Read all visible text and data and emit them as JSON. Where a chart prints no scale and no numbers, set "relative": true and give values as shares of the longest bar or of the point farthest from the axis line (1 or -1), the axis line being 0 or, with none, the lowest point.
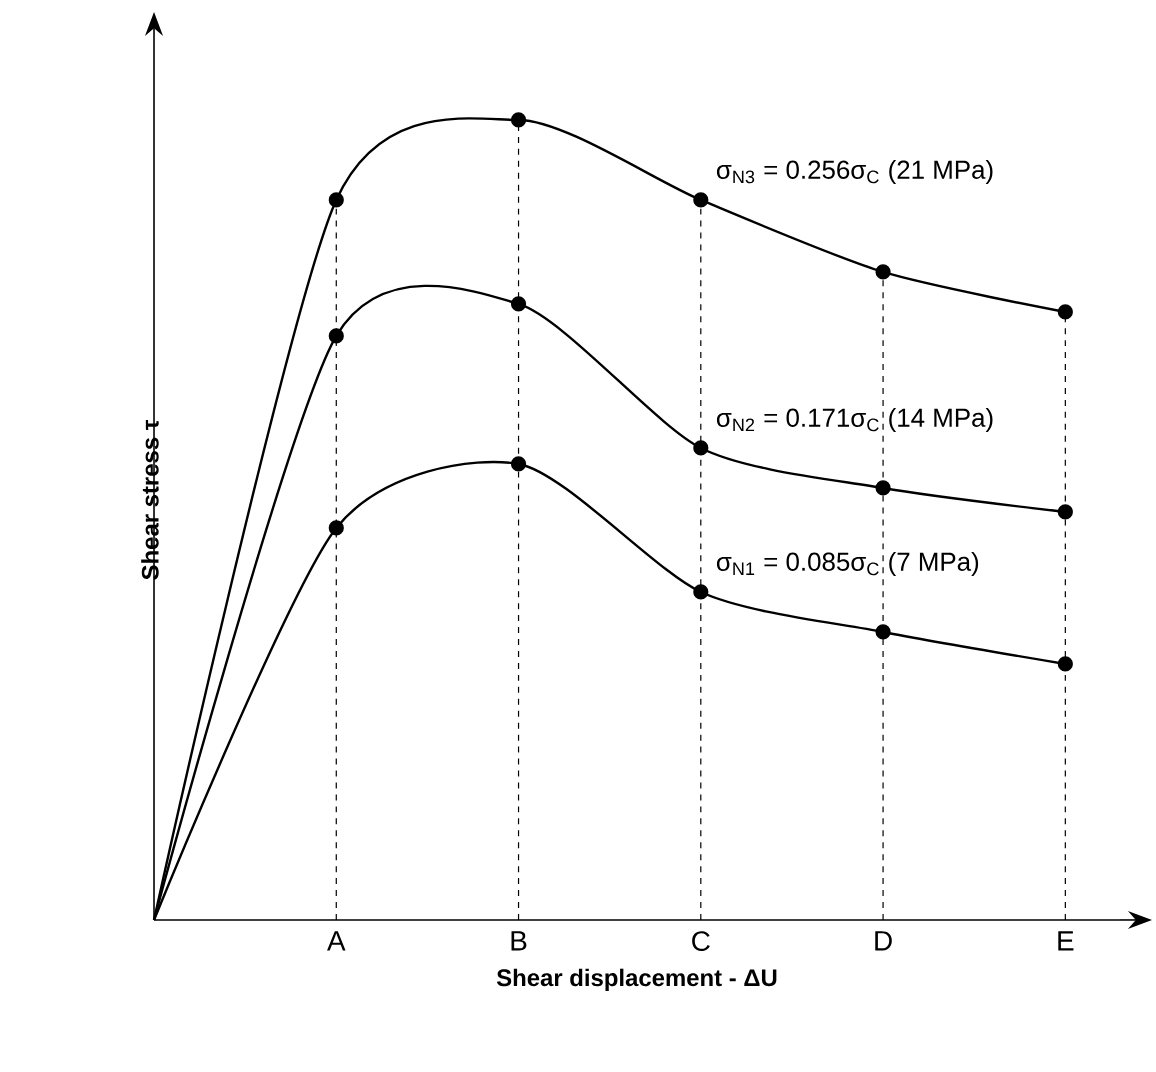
{
  "chart_data": {
    "type": "line",
    "relative": true,
    "xlabel": "Shear displacement - ΔU",
    "ylabel": "Shear stress τ",
    "categories": [
      null,
      "A",
      "B",
      "C",
      "D",
      "E"
    ],
    "ref_lines": [
      {
        "axis": "x",
        "value": "A",
        "line_style": "dashed"
      },
      {
        "axis": "x",
        "value": "B",
        "line_style": "dashed"
      },
      {
        "axis": "x",
        "value": "C",
        "line_style": "dashed"
      },
      {
        "axis": "x",
        "value": "D",
        "line_style": "dashed"
      },
      {
        "axis": "x",
        "value": "E",
        "line_style": "dashed"
      }
    ],
    "marker": "circle",
    "line_style": "solid",
    "grid": false,
    "series": [
      {
        "name": "σ$_{N3}$ = 0.256σ$_{C}$ (21 MPa)",
        "color": "#000000",
        "values": [
          0,
          0.9,
          1,
          0.9,
          0.81,
          0.76
        ]
      },
      {
        "name": "σ$_{N2}$ = 0.171σ$_{C}$ (14 MPa)",
        "color": "#000000",
        "values": [
          0,
          0.73,
          0.77,
          0.59,
          0.54,
          0.51
        ]
      },
      {
        "name": "σ$_{N1}$ = 0.085σ$_{C}$ (7 MPa)",
        "color": "#000000",
        "values": [
          0,
          0.49,
          0.57,
          0.41,
          0.36,
          0.32
        ]
      }
    ]
  }
}
